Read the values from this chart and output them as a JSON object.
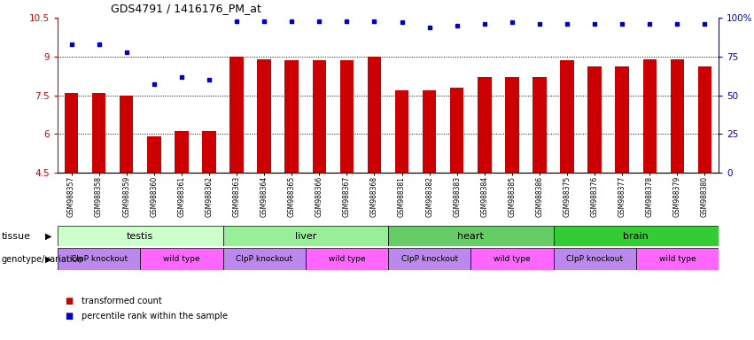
{
  "title": "GDS4791 / 1416176_PM_at",
  "samples": [
    "GSM988357",
    "GSM988358",
    "GSM988359",
    "GSM988360",
    "GSM988361",
    "GSM988362",
    "GSM988363",
    "GSM988364",
    "GSM988365",
    "GSM988366",
    "GSM988367",
    "GSM988368",
    "GSM988381",
    "GSM988382",
    "GSM988383",
    "GSM988384",
    "GSM988385",
    "GSM988386",
    "GSM988375",
    "GSM988376",
    "GSM988377",
    "GSM988378",
    "GSM988379",
    "GSM988380"
  ],
  "bar_values": [
    7.6,
    7.6,
    7.5,
    5.9,
    6.1,
    6.1,
    9.0,
    8.9,
    8.85,
    8.85,
    8.85,
    9.0,
    7.7,
    7.7,
    7.8,
    8.2,
    8.2,
    8.2,
    8.85,
    8.6,
    8.6,
    8.9,
    8.9,
    8.6
  ],
  "percentile_values": [
    83,
    83,
    78,
    57,
    62,
    60,
    98,
    98,
    98,
    98,
    98,
    98,
    97,
    94,
    95,
    96,
    97,
    96,
    96,
    96,
    96,
    96,
    96,
    96
  ],
  "bar_color": "#CC0000",
  "dot_color": "#0000CC",
  "ylim_min": 4.5,
  "ylim_max": 10.5,
  "yticks_left": [
    4.5,
    6.0,
    7.5,
    9.0,
    10.5
  ],
  "yticks_right": [
    0,
    25,
    50,
    75,
    100
  ],
  "ytick_right_labels": [
    "0",
    "25",
    "50",
    "75",
    "100%"
  ],
  "hlines": [
    6.0,
    7.5,
    9.0
  ],
  "tissue_groups": [
    {
      "label": "testis",
      "start": 0,
      "end": 6,
      "color": "#CCFFCC"
    },
    {
      "label": "liver",
      "start": 6,
      "end": 12,
      "color": "#99EE99"
    },
    {
      "label": "heart",
      "start": 12,
      "end": 18,
      "color": "#66CC66"
    },
    {
      "label": "brain",
      "start": 18,
      "end": 24,
      "color": "#33CC33"
    }
  ],
  "genotype_groups": [
    {
      "label": "ClpP knockout",
      "start": 0,
      "end": 3,
      "color": "#BB88EE"
    },
    {
      "label": "wild type",
      "start": 3,
      "end": 6,
      "color": "#FF66FF"
    },
    {
      "label": "ClpP knockout",
      "start": 6,
      "end": 9,
      "color": "#BB88EE"
    },
    {
      "label": "wild type",
      "start": 9,
      "end": 12,
      "color": "#FF66FF"
    },
    {
      "label": "ClpP knockout",
      "start": 12,
      "end": 15,
      "color": "#BB88EE"
    },
    {
      "label": "wild type",
      "start": 15,
      "end": 18,
      "color": "#FF66FF"
    },
    {
      "label": "ClpP knockout",
      "start": 18,
      "end": 21,
      "color": "#BB88EE"
    },
    {
      "label": "wild type",
      "start": 21,
      "end": 24,
      "color": "#FF66FF"
    }
  ],
  "row_label_tissue": "tissue",
  "row_label_geno": "genotype/variation",
  "legend_items": [
    {
      "label": "transformed count",
      "color": "#CC0000"
    },
    {
      "label": "percentile rank within the sample",
      "color": "#0000CC"
    }
  ],
  "bar_width": 0.5,
  "fig_width": 8.51,
  "fig_height": 3.84,
  "dpi": 100
}
